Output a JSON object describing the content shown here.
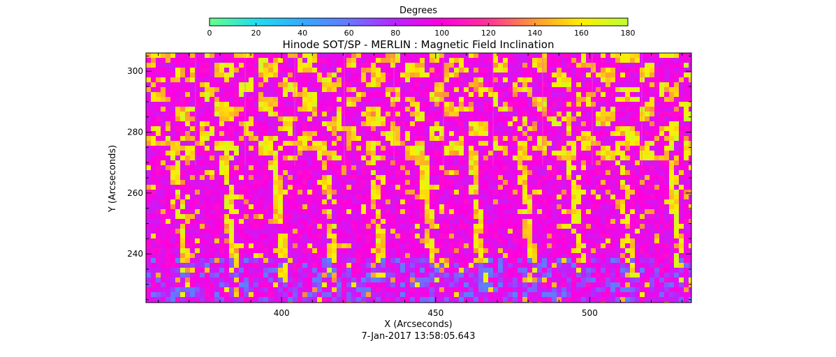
{
  "chart_data": {
    "type": "heatmap",
    "title": "Hinode SOT/SP - MERLIN : Magnetic Field Inclination",
    "xlabel": "X (Arcseconds)",
    "ylabel": "Y (Arcseconds)",
    "footer": "7-Jan-2017 13:58:05.643",
    "xlim": [
      356,
      533
    ],
    "ylim": [
      224,
      306
    ],
    "x_ticks": [
      400,
      450,
      500
    ],
    "y_ticks": [
      240,
      260,
      280,
      300
    ],
    "colorbar": {
      "label": "Degrees",
      "range": [
        0,
        180
      ],
      "ticks": [
        0,
        20,
        40,
        60,
        80,
        100,
        120,
        140,
        160,
        180
      ],
      "stops": [
        {
          "value": 0,
          "color": "#66ff88"
        },
        {
          "value": 20,
          "color": "#22ddee"
        },
        {
          "value": 40,
          "color": "#33aaff"
        },
        {
          "value": 60,
          "color": "#6677ff"
        },
        {
          "value": 80,
          "color": "#bb22ff"
        },
        {
          "value": 100,
          "color": "#ff00dd"
        },
        {
          "value": 120,
          "color": "#ff3399"
        },
        {
          "value": 140,
          "color": "#ff9933"
        },
        {
          "value": 160,
          "color": "#ffee00"
        },
        {
          "value": 180,
          "color": "#bbff33"
        }
      ]
    },
    "dominant_value": 95,
    "strip_count": 11
  }
}
